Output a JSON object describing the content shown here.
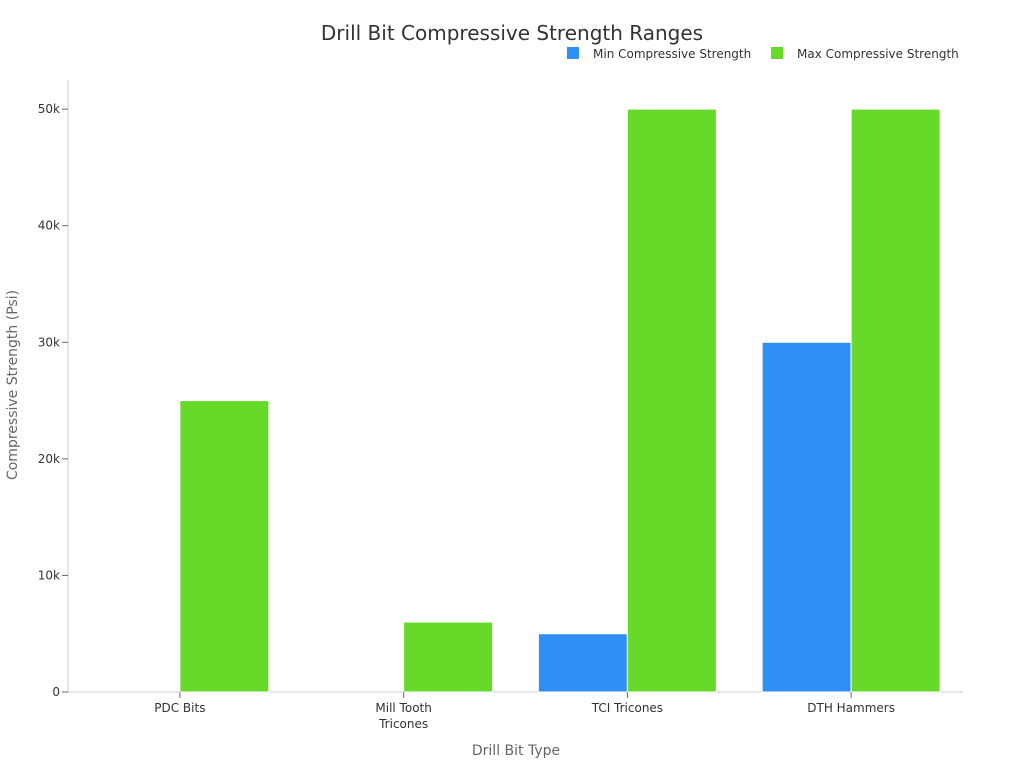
{
  "chart_data": {
    "type": "bar",
    "title": "Drill Bit Compressive Strength Ranges",
    "xlabel": "Drill Bit Type",
    "ylabel": "Compressive Strength (Psi)",
    "categories": [
      "PDC Bits",
      "Mill Tooth Tricones",
      "TCI Tricones",
      "DTH Hammers"
    ],
    "category_lines": [
      [
        "PDC Bits"
      ],
      [
        "Mill Tooth",
        "Tricones"
      ],
      [
        "TCI Tricones"
      ],
      [
        "DTH Hammers"
      ]
    ],
    "series": [
      {
        "name": "Min Compressive Strength",
        "color": "#2E90F5",
        "values": [
          0,
          0,
          5000,
          30000
        ]
      },
      {
        "name": "Max Compressive Strength",
        "color": "#66D929",
        "values": [
          25000,
          6000,
          50000,
          50000
        ]
      }
    ],
    "ylim": [
      0,
      52500
    ],
    "yticks": [
      0,
      10000,
      20000,
      30000,
      40000,
      50000
    ],
    "ytick_labels": [
      "0",
      "10k",
      "20k",
      "30k",
      "40k",
      "50k"
    ],
    "legend_position": "top-right",
    "grid": false
  }
}
